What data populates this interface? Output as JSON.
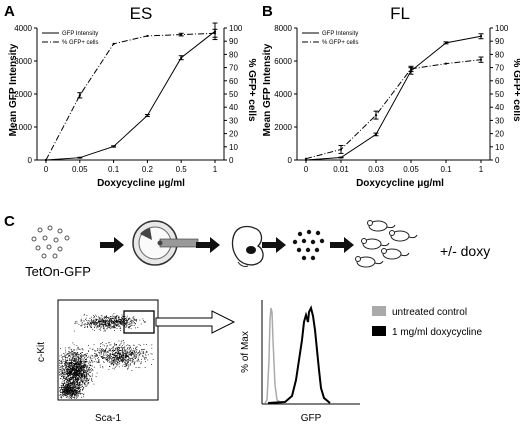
{
  "panels": {
    "a": "A",
    "b": "B",
    "c": "C"
  },
  "chart_data": [
    {
      "type": "line",
      "title": "ES",
      "xlabel": "Doxycycline μg/ml",
      "ylabel": "Mean GFP Intensity",
      "y2label": "% GFP+ cells",
      "categories": [
        "0",
        "0.05",
        "0.1",
        "0.2",
        "0.5",
        "1"
      ],
      "ylim": [
        0,
        4000
      ],
      "yticks": [
        "0",
        "1000",
        "2000",
        "3000",
        "4000"
      ],
      "y2lim": [
        0,
        100
      ],
      "y2ticks": [
        "0",
        "10",
        "20",
        "30",
        "40",
        "50",
        "60",
        "70",
        "80",
        "90",
        "100"
      ],
      "series": [
        {
          "name": "GFP Intensity",
          "axis": "left",
          "style": "solid",
          "values": [
            0,
            70,
            410,
            1350,
            3100,
            3900
          ],
          "err": [
            0,
            10,
            20,
            30,
            60,
            250
          ]
        },
        {
          "name": "% GFP+ cells",
          "axis": "right",
          "style": "dashdot",
          "values": [
            0,
            49,
            88,
            94,
            95,
            96
          ],
          "err": [
            0,
            2,
            0,
            0,
            1,
            3
          ]
        }
      ],
      "legend": "top-left"
    },
    {
      "type": "line",
      "title": "FL",
      "xlabel": "Doxycycline μg/ml",
      "ylabel": "Mean GFP Intensity",
      "y2label": "% GFP+ cells",
      "categories": [
        "0",
        "0.01",
        "0.03",
        "0.05",
        "0.1",
        "1"
      ],
      "ylim": [
        0,
        8000
      ],
      "yticks": [
        "0",
        "2000",
        "4000",
        "6000",
        "8000"
      ],
      "y2lim": [
        0,
        100
      ],
      "y2ticks": [
        "0",
        "10",
        "20",
        "30",
        "40",
        "50",
        "60",
        "70",
        "80",
        "90",
        "100"
      ],
      "series": [
        {
          "name": "GFP Intensity",
          "axis": "left",
          "style": "solid",
          "values": [
            0,
            150,
            1550,
            5400,
            7100,
            7500
          ],
          "err": [
            0,
            20,
            80,
            200,
            60,
            150
          ]
        },
        {
          "name": "% GFP+ cells",
          "axis": "right",
          "style": "dashdot",
          "values": [
            1,
            8,
            34,
            69,
            73,
            76
          ],
          "err": [
            0,
            3,
            3,
            2,
            0,
            2
          ]
        }
      ],
      "legend": "top-left"
    },
    {
      "type": "scatter",
      "xlabel": "Sca-1",
      "ylabel": "c-Kit"
    },
    {
      "type": "area",
      "xlabel": "GFP",
      "ylabel": "% of Max",
      "series": [
        {
          "name": "untreated control",
          "color": "#aaaaaa"
        },
        {
          "name": "1 mg/ml doxycycline",
          "color": "#000000"
        }
      ]
    }
  ],
  "diagram": {
    "start_label": "TetOn-GFP",
    "end_label": "+/- doxy"
  }
}
